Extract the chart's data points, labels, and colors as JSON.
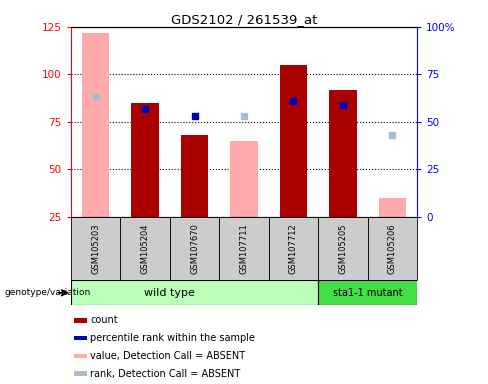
{
  "title": "GDS2102 / 261539_at",
  "samples": [
    "GSM105203",
    "GSM105204",
    "GSM107670",
    "GSM107711",
    "GSM107712",
    "GSM105205",
    "GSM105206"
  ],
  "count_values": [
    null,
    85,
    68,
    null,
    105,
    92,
    35
  ],
  "pink_bar_top": [
    122,
    null,
    null,
    65,
    null,
    null,
    35
  ],
  "pink_bar_bottom": [
    25,
    null,
    null,
    25,
    null,
    null,
    25
  ],
  "blue_sq_rank": [
    63,
    57,
    53,
    53,
    61,
    59,
    43
  ],
  "absent_mask": [
    true,
    false,
    false,
    true,
    false,
    false,
    true
  ],
  "ylim_left": [
    25,
    125
  ],
  "ylim_right": [
    0,
    100
  ],
  "yticks_left": [
    25,
    50,
    75,
    100,
    125
  ],
  "yticks_right": [
    0,
    25,
    50,
    75,
    100
  ],
  "yticklabels_right": [
    "0",
    "25",
    "50",
    "75",
    "100%"
  ],
  "hlines": [
    50,
    75,
    100
  ],
  "color_count": "#aa0000",
  "color_absent_value": "#ffaaaa",
  "color_absent_rank": "#aabbcc",
  "color_blue": "#0000bb",
  "color_group_wt": "#bbffbb",
  "color_group_mut": "#44dd44",
  "color_sample_bg": "#cccccc",
  "wt_samples": 5,
  "mut_samples": 2,
  "group_label_wt": "wild type",
  "group_label_mut": "sta1-1 mutant",
  "legend_labels": [
    "count",
    "percentile rank within the sample",
    "value, Detection Call = ABSENT",
    "rank, Detection Call = ABSENT"
  ],
  "legend_colors": [
    "#aa0000",
    "#0000bb",
    "#ffaaaa",
    "#aabbcc"
  ]
}
